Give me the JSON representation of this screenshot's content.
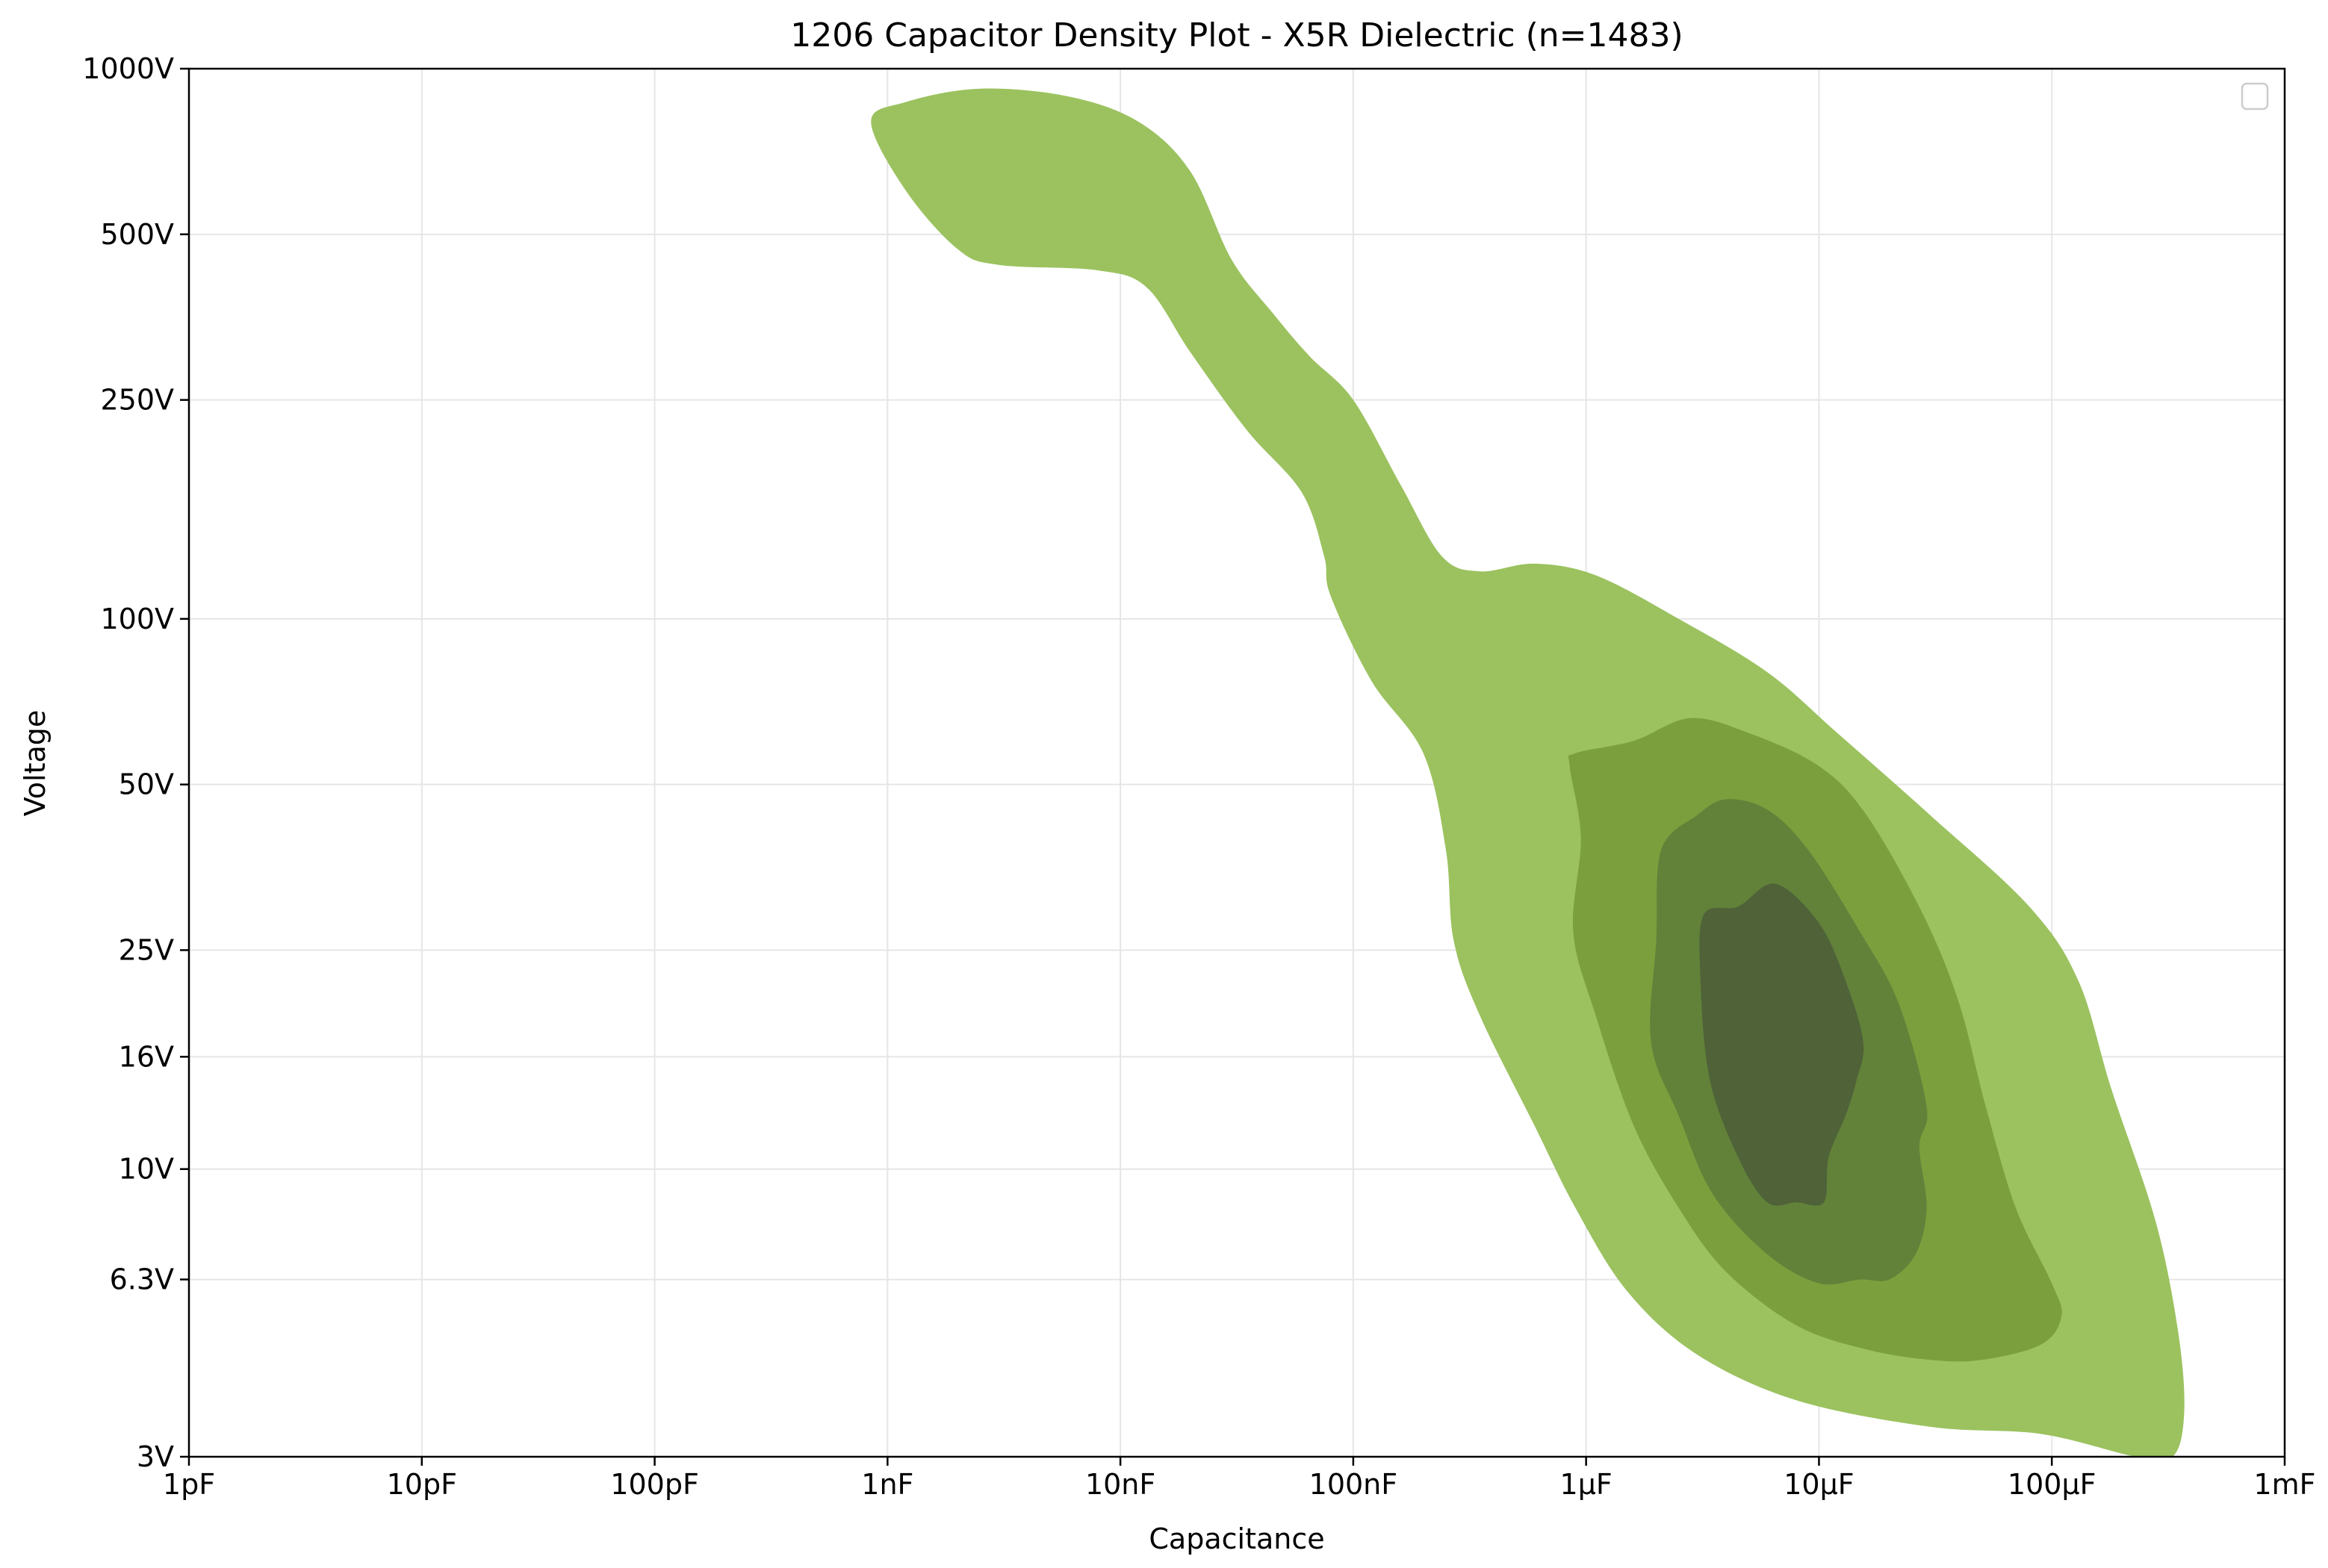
{
  "chart_data": {
    "type": "contour",
    "title": "1206 Capacitor Density Plot - X5R Dielectric (n=1483)",
    "xlabel": "Capacitance",
    "ylabel": "Voltage",
    "x_scale": "log",
    "y_scale": "log",
    "x_unit": "F",
    "y_unit": "V",
    "xlim": [
      1e-12,
      0.001
    ],
    "ylim": [
      3,
      1000
    ],
    "grid": true,
    "legend": {
      "placement": "top-right",
      "entries": []
    },
    "x_ticks": [
      {
        "value": 1e-12,
        "label": "1pF"
      },
      {
        "value": 1e-11,
        "label": "10pF"
      },
      {
        "value": 1e-10,
        "label": "100pF"
      },
      {
        "value": 1e-09,
        "label": "1nF"
      },
      {
        "value": 1e-08,
        "label": "10nF"
      },
      {
        "value": 1e-07,
        "label": "100nF"
      },
      {
        "value": 1e-06,
        "label": "1µF"
      },
      {
        "value": 1e-05,
        "label": "10µF"
      },
      {
        "value": 0.0001,
        "label": "100µF"
      },
      {
        "value": 0.001,
        "label": "1mF"
      }
    ],
    "y_ticks": [
      {
        "value": 3,
        "label": "3V"
      },
      {
        "value": 6.3,
        "label": "6.3V"
      },
      {
        "value": 10,
        "label": "10V"
      },
      {
        "value": 16,
        "label": "16V"
      },
      {
        "value": 25,
        "label": "25V"
      },
      {
        "value": 50,
        "label": "50V"
      },
      {
        "value": 100,
        "label": "100V"
      },
      {
        "value": 250,
        "label": "250V"
      },
      {
        "value": 500,
        "label": "500V"
      },
      {
        "value": 1000,
        "label": "1000V"
      }
    ],
    "density_levels": [
      {
        "level": 1,
        "color": "#9bc25f",
        "contour": [
          [
            1.2e-09,
            870
          ],
          [
            2.5e-09,
            920
          ],
          [
            6e-09,
            890
          ],
          [
            1.2e-08,
            800
          ],
          [
            2e-08,
            650
          ],
          [
            3e-08,
            450
          ],
          [
            4.5e-08,
            360
          ],
          [
            6.5e-08,
            300
          ],
          [
            1e-07,
            250
          ],
          [
            1.6e-07,
            175
          ],
          [
            2.4e-07,
            130
          ],
          [
            3.5e-07,
            122
          ],
          [
            6e-07,
            126
          ],
          [
            1.1e-06,
            120
          ],
          [
            2.5e-06,
            100
          ],
          [
            6e-06,
            80
          ],
          [
            1.2e-05,
            62
          ],
          [
            3e-05,
            44
          ],
          [
            8e-05,
            30
          ],
          [
            0.00013,
            22
          ],
          [
            0.00018,
            14
          ],
          [
            0.00028,
            8
          ],
          [
            0.00035,
            5
          ],
          [
            0.00037,
            3.6
          ],
          [
            0.00033,
            3
          ],
          [
            0.00023,
            3
          ],
          [
            9e-05,
            3.3
          ],
          [
            3e-05,
            3.4
          ],
          [
            8e-06,
            3.8
          ],
          [
            3e-06,
            4.6
          ],
          [
            1.5e-06,
            6
          ],
          [
            9e-07,
            8.5
          ],
          [
            6e-07,
            12
          ],
          [
            3.5e-07,
            19
          ],
          [
            2.7e-07,
            26
          ],
          [
            2.5e-07,
            38
          ],
          [
            2e-07,
            57
          ],
          [
            1.2e-07,
            77
          ],
          [
            8e-08,
            110
          ],
          [
            7.5e-08,
            130
          ],
          [
            6e-08,
            170
          ],
          [
            3.5e-08,
            220
          ],
          [
            2e-08,
            305
          ],
          [
            1.3e-08,
            400
          ],
          [
            8e-09,
            430
          ],
          [
            3e-09,
            440
          ],
          [
            2e-09,
            470
          ],
          [
            1.2e-09,
            600
          ],
          [
            8.5e-10,
            800
          ]
        ]
      },
      {
        "level": 2,
        "color": "#7c9f3d",
        "contour": [
          [
            9e-07,
            57
          ],
          [
            1.6e-06,
            60
          ],
          [
            2.8e-06,
            66
          ],
          [
            5e-06,
            62
          ],
          [
            1e-05,
            54
          ],
          [
            1.6e-05,
            44
          ],
          [
            2.8e-05,
            29
          ],
          [
            4e-05,
            20
          ],
          [
            5.2e-05,
            13
          ],
          [
            7e-05,
            8.5
          ],
          [
            0.0001,
            6.2
          ],
          [
            0.00011,
            5.4
          ],
          [
            9e-05,
            4.8
          ],
          [
            5e-05,
            4.5
          ],
          [
            3e-05,
            4.5
          ],
          [
            1.6e-05,
            4.7
          ],
          [
            8e-06,
            5.2
          ],
          [
            4e-06,
            6.5
          ],
          [
            2.5e-06,
            8.5
          ],
          [
            1.6e-06,
            12
          ],
          [
            1.1e-06,
            19
          ],
          [
            8.8e-07,
            27
          ],
          [
            9.5e-07,
            40
          ],
          [
            8.5e-07,
            54
          ]
        ]
      },
      {
        "level": 3,
        "color": "#62823a",
        "contour": [
          [
            2.1e-06,
            38
          ],
          [
            3e-06,
            44
          ],
          [
            4e-06,
            47
          ],
          [
            6e-06,
            45
          ],
          [
            9e-06,
            38
          ],
          [
            1.5e-05,
            27
          ],
          [
            2.2e-05,
            20
          ],
          [
            2.9e-05,
            13
          ],
          [
            2.7e-05,
            11
          ],
          [
            2.9e-05,
            8.5
          ],
          [
            2.6e-05,
            7
          ],
          [
            2e-05,
            6.3
          ],
          [
            1.5e-05,
            6.3
          ],
          [
            1e-05,
            6.2
          ],
          [
            6e-06,
            7
          ],
          [
            3.5e-06,
            9
          ],
          [
            2.5e-06,
            12.5
          ],
          [
            1.9e-06,
            17
          ],
          [
            2e-06,
            26
          ]
        ]
      },
      {
        "level": 4,
        "color": "#4f6238",
        "contour": [
          [
            3.2e-06,
            29
          ],
          [
            4.5e-06,
            30
          ],
          [
            6.5e-06,
            33
          ],
          [
            1e-05,
            28
          ],
          [
            1.3e-05,
            22
          ],
          [
            1.55e-05,
            17
          ],
          [
            1.45e-05,
            14.5
          ],
          [
            1.3e-05,
            12.5
          ],
          [
            1.1e-05,
            10.5
          ],
          [
            1.05e-05,
            8.7
          ],
          [
            8e-06,
            8.7
          ],
          [
            6e-06,
            8.7
          ],
          [
            4.5e-06,
            10.5
          ],
          [
            3.4e-06,
            14.5
          ],
          [
            3.1e-06,
            22
          ]
        ]
      }
    ]
  }
}
